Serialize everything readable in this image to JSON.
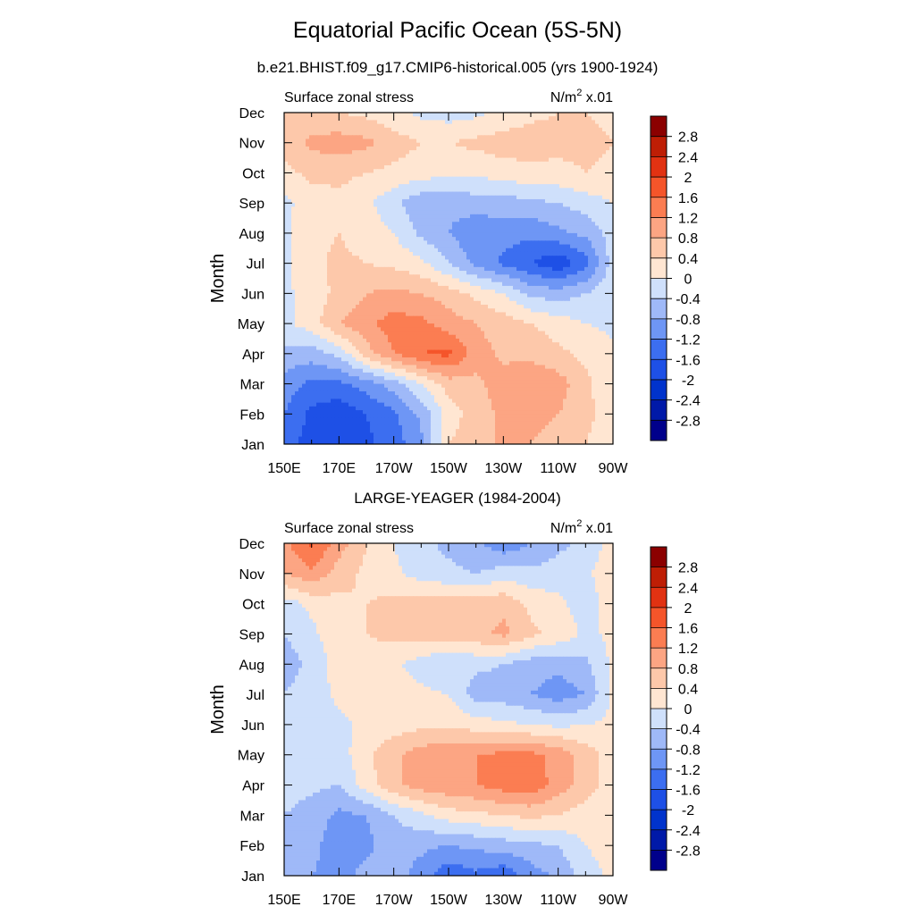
{
  "title": "Equatorial Pacific Ocean (5S-5N)",
  "chart_data": [
    {
      "type": "heatmap",
      "title": "b.e21.BHIST.f09_g17.CMIP6-historical.005 (yrs 1900-1924)",
      "left_label": "Surface zonal stress",
      "units_base": "N/m",
      "units_exp": "2",
      "units_scale": "x.01",
      "xlabel": "",
      "ylabel": "Month",
      "x_ticks": [
        "150E",
        "170E",
        "170W",
        "150W",
        "130W",
        "110W",
        "90W"
      ],
      "x_lon": [
        150,
        170,
        190,
        210,
        230,
        250,
        270
      ],
      "xlim": [
        150,
        270
      ],
      "y_ticks": [
        "Jan",
        "Feb",
        "Mar",
        "Apr",
        "May",
        "Jun",
        "Jul",
        "Aug",
        "Sep",
        "Oct",
        "Nov",
        "Dec"
      ],
      "ylim": [
        1,
        12
      ],
      "contour_levels": [
        -2.8,
        -2.4,
        -2,
        -1.6,
        -1.2,
        -0.8,
        -0.4,
        0,
        0.4,
        0.8,
        1.2,
        1.6,
        2,
        2.4,
        2.8
      ],
      "grid_lon": [
        150,
        160,
        170,
        180,
        190,
        200,
        210,
        220,
        230,
        240,
        250,
        260,
        270
      ],
      "grid_month": [
        1,
        2,
        3,
        4,
        5,
        6,
        7,
        8,
        9,
        10,
        11,
        12
      ],
      "values": [
        [
          -1.4,
          -1.8,
          -1.9,
          -1.7,
          -1.4,
          -0.9,
          0.4,
          0.6,
          0.9,
          0.8,
          0.6,
          0.4,
          0.2
        ],
        [
          -1.2,
          -1.7,
          -1.9,
          -1.6,
          -1.3,
          -0.7,
          0.2,
          0.6,
          0.9,
          1.0,
          0.8,
          0.5,
          0.2
        ],
        [
          -1.0,
          -1.3,
          -1.3,
          -1.0,
          -0.6,
          0.0,
          0.6,
          0.7,
          1.0,
          1.1,
          1.0,
          0.5,
          0.1
        ],
        [
          -0.5,
          -0.6,
          -0.3,
          0.6,
          1.2,
          1.6,
          1.7,
          1.0,
          0.7,
          0.7,
          0.5,
          0.3,
          0.1
        ],
        [
          -0.1,
          0.2,
          0.8,
          1.1,
          1.4,
          1.3,
          1.0,
          0.8,
          0.6,
          0.4,
          0.2,
          0.0,
          -0.1
        ],
        [
          -0.1,
          0.2,
          0.5,
          0.8,
          0.9,
          0.8,
          0.6,
          0.3,
          0.0,
          -0.5,
          -0.6,
          -0.4,
          -0.1
        ],
        [
          -0.1,
          0.3,
          0.5,
          0.4,
          0.3,
          0.1,
          -0.4,
          -0.9,
          -1.3,
          -1.6,
          -1.9,
          -1.4,
          -0.2
        ],
        [
          -0.1,
          0.3,
          0.4,
          0.2,
          0.0,
          -0.5,
          -0.8,
          -1.1,
          -1.0,
          -1.1,
          -0.9,
          -0.7,
          -0.2
        ],
        [
          -0.1,
          0.2,
          0.3,
          0.1,
          -0.3,
          -0.7,
          -0.7,
          -0.6,
          -0.6,
          -0.5,
          -0.4,
          -0.2,
          0.0
        ],
        [
          0.3,
          0.5,
          0.5,
          0.4,
          0.3,
          0.2,
          0.1,
          0.1,
          0.2,
          0.3,
          0.3,
          0.4,
          0.3
        ],
        [
          0.5,
          0.9,
          1.0,
          0.9,
          0.6,
          0.4,
          0.4,
          0.5,
          0.6,
          0.6,
          0.5,
          0.5,
          0.4
        ],
        [
          0.4,
          0.5,
          0.4,
          0.3,
          0.1,
          -0.1,
          -0.2,
          -0.1,
          0.1,
          0.3,
          0.4,
          0.4,
          0.3
        ]
      ]
    },
    {
      "type": "heatmap",
      "title": "LARGE-YEAGER (1984-2004)",
      "left_label": "Surface zonal stress",
      "units_base": "N/m",
      "units_exp": "2",
      "units_scale": "x.01",
      "xlabel": "",
      "ylabel": "Month",
      "x_ticks": [
        "150E",
        "170E",
        "170W",
        "150W",
        "130W",
        "110W",
        "90W"
      ],
      "x_lon": [
        150,
        170,
        190,
        210,
        230,
        250,
        270
      ],
      "xlim": [
        150,
        270
      ],
      "y_ticks": [
        "Jan",
        "Feb",
        "Mar",
        "Apr",
        "May",
        "Jun",
        "Jul",
        "Aug",
        "Sep",
        "Oct",
        "Nov",
        "Dec"
      ],
      "ylim": [
        1,
        12
      ],
      "contour_levels": [
        -2.8,
        -2.4,
        -2,
        -1.6,
        -1.2,
        -0.8,
        -0.4,
        0,
        0.4,
        0.8,
        1.2,
        1.6,
        2,
        2.4,
        2.8
      ],
      "grid_lon": [
        150,
        160,
        170,
        180,
        190,
        200,
        210,
        220,
        230,
        240,
        250,
        260,
        270
      ],
      "grid_month": [
        1,
        2,
        3,
        4,
        5,
        6,
        7,
        8,
        9,
        10,
        11,
        12
      ],
      "values": [
        [
          -0.6,
          -0.8,
          -0.9,
          -0.7,
          -0.6,
          -1.0,
          -1.5,
          -1.3,
          -1.5,
          -1.0,
          -0.7,
          -0.2,
          0.1
        ],
        [
          -0.5,
          -0.7,
          -1.0,
          -0.9,
          -0.6,
          -0.7,
          -0.8,
          -0.7,
          -0.6,
          -0.5,
          -0.4,
          0.0,
          0.2
        ],
        [
          -0.4,
          -0.6,
          -0.9,
          -0.8,
          -0.4,
          -0.1,
          0.2,
          0.3,
          0.4,
          0.5,
          0.4,
          0.2,
          0.2
        ],
        [
          -0.2,
          -0.3,
          -0.4,
          0.2,
          0.7,
          1.0,
          1.1,
          1.2,
          1.4,
          1.5,
          1.0,
          0.6,
          0.2
        ],
        [
          -0.1,
          -0.3,
          -0.2,
          0.3,
          0.7,
          1.0,
          1.1,
          1.2,
          1.3,
          1.3,
          1.1,
          0.6,
          0.2
        ],
        [
          -0.1,
          -0.2,
          -0.1,
          0.1,
          0.2,
          0.3,
          0.3,
          0.2,
          0.1,
          0.0,
          -0.1,
          0.0,
          0.1
        ],
        [
          -0.4,
          -0.2,
          0.1,
          0.2,
          0.2,
          0.1,
          0.0,
          -0.6,
          -0.6,
          -0.8,
          -1.0,
          -0.8,
          0.1
        ],
        [
          -0.6,
          -0.3,
          0.2,
          0.3,
          0.1,
          -0.2,
          -0.4,
          -0.3,
          -0.4,
          -0.6,
          -0.7,
          -0.5,
          0.1
        ],
        [
          -0.4,
          -0.1,
          0.3,
          0.4,
          0.5,
          0.6,
          0.6,
          0.7,
          0.9,
          0.5,
          0.3,
          -0.1,
          0.1
        ],
        [
          -0.2,
          0.1,
          0.3,
          0.4,
          0.5,
          0.6,
          0.6,
          0.6,
          0.7,
          0.3,
          0.1,
          -0.2,
          0.2
        ],
        [
          0.8,
          1.1,
          0.6,
          0.3,
          0.1,
          -0.2,
          -0.3,
          -0.4,
          -0.2,
          -0.3,
          -0.2,
          -0.1,
          0.3
        ],
        [
          1.1,
          1.7,
          1.0,
          0.4,
          0.0,
          -0.3,
          -0.5,
          -0.7,
          -1.1,
          -0.8,
          -0.5,
          -0.3,
          0.2
        ]
      ]
    }
  ],
  "colorbar": {
    "labels": [
      "2.8",
      "2.4",
      "2",
      "1.6",
      "1.2",
      "0.8",
      "0.4",
      "0",
      "-0.4",
      "-0.8",
      "-1.2",
      "-1.6",
      "-2",
      "-2.4",
      "-2.8"
    ],
    "colors": [
      "#00008b",
      "#0019a8",
      "#0033cc",
      "#1e50e6",
      "#3c6ef0",
      "#6e96f5",
      "#9fb9f8",
      "#cfe0fb",
      "#ffe6d2",
      "#fdc8aa",
      "#fca583",
      "#fb7d52",
      "#f5552a",
      "#e13212",
      "#be1e05",
      "#8b0000"
    ]
  }
}
